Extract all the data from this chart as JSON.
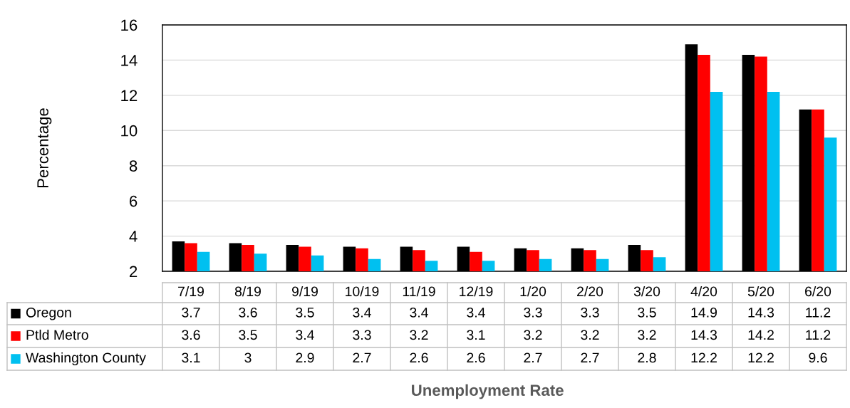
{
  "chart_data": {
    "type": "bar",
    "annotations": [
      "Unemployment Rate"
    ],
    "ylabel": "Percentage",
    "legend": "bottom left",
    "categories": [
      "7/19",
      "8/19",
      "9/19",
      "10/19",
      "11/19",
      "12/19",
      "1/20",
      "2/20",
      "3/20",
      "4/20",
      "5/20",
      "6/20"
    ],
    "series": [
      {
        "name": "Oregon",
        "color": "#000000",
        "values": [
          3.7,
          3.6,
          3.5,
          3.4,
          3.4,
          3.4,
          3.3,
          3.3,
          3.5,
          14.9,
          14.3,
          11.2
        ]
      },
      {
        "name": "Ptld Metro",
        "color": "#ff0000",
        "values": [
          3.6,
          3.5,
          3.4,
          3.3,
          3.2,
          3.1,
          3.2,
          3.2,
          3.2,
          14.3,
          14.2,
          11.2
        ]
      },
      {
        "name": "Washington County",
        "color": "#00c0f0",
        "values": [
          3.1,
          3,
          2.9,
          2.7,
          2.6,
          2.6,
          2.7,
          2.7,
          2.8,
          12.2,
          12.2,
          9.6
        ]
      }
    ],
    "ylim": [
      2,
      16
    ],
    "yticks": [
      2,
      4,
      6,
      8,
      10,
      12,
      14,
      16
    ],
    "grid": "y",
    "data_labels": true
  }
}
